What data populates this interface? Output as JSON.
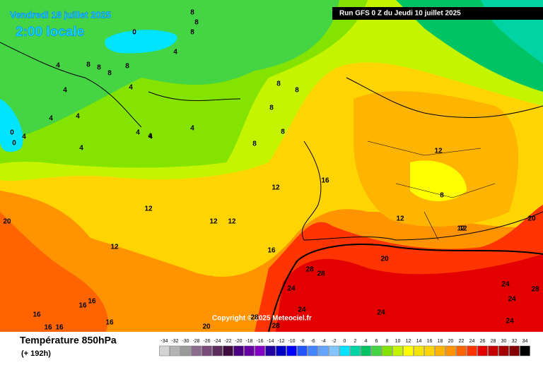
{
  "header": {
    "valid_time": "Vendredi 18 juillet 2025",
    "local_time": "2:00 locale",
    "run": "Run GFS 0 Z du Jeudi 10 juillet 2025"
  },
  "copyright": "Copyright © 2025 Meteociel.fr",
  "footer": {
    "title": "Température 850hPa",
    "lead": "(+ 192h)"
  },
  "scale": {
    "values": [
      -34,
      -32,
      -30,
      -28,
      -26,
      -24,
      -22,
      -20,
      -18,
      -16,
      -14,
      -12,
      -10,
      -8,
      -6,
      -4,
      -2,
      0,
      2,
      4,
      6,
      8,
      10,
      12,
      14,
      16,
      18,
      20,
      22,
      24,
      26,
      28,
      30,
      32,
      34
    ],
    "colors": [
      "#d4d4d4",
      "#b4b4b4",
      "#9a9a9a",
      "#8c6c8c",
      "#7a4a7a",
      "#5c2c5c",
      "#3e0c3e",
      "#4a0080",
      "#6600a4",
      "#8200c4",
      "#2200a4",
      "#0000c4",
      "#0000ff",
      "#2456ff",
      "#4484ff",
      "#64a4ff",
      "#84c4ff",
      "#00e4ff",
      "#00d4a4",
      "#00c464",
      "#44d444",
      "#84e400",
      "#c4f400",
      "#ffff00",
      "#f4e400",
      "#ffd400",
      "#ffb400",
      "#ff9400",
      "#ff6400",
      "#ff3400",
      "#e40000",
      "#c40000",
      "#a40000",
      "#840000",
      "#000000"
    ]
  },
  "contour_labels": [
    0,
    8,
    8,
    8,
    4,
    8,
    8,
    8,
    4,
    4,
    4,
    4,
    4,
    4,
    0,
    0,
    4,
    4,
    4,
    4,
    8,
    8,
    8,
    8,
    8,
    8,
    12,
    16,
    12,
    8,
    12,
    12,
    12,
    12,
    12,
    12,
    12,
    16,
    20,
    28,
    28,
    24,
    24,
    28,
    24,
    28,
    24,
    24,
    24,
    28,
    20,
    20,
    16,
    16,
    16,
    16,
    16,
    16,
    20,
    4
  ]
}
